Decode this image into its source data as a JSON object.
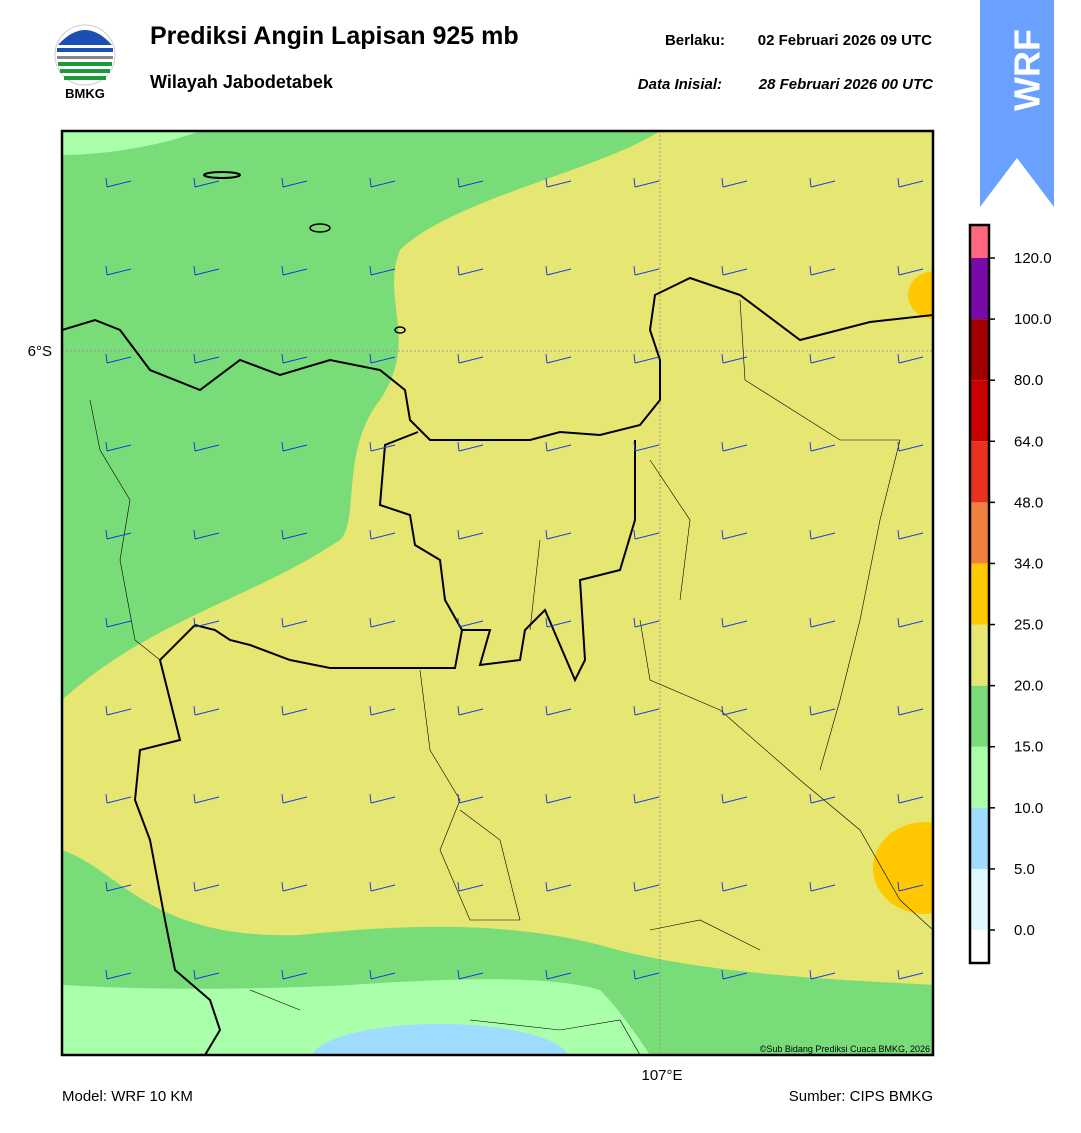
{
  "header": {
    "title": "Prediksi Angin Lapisan 925 mb",
    "subtitle": "Wilayah Jabodetabek",
    "valid_label": "Berlaku:",
    "valid": "02 Februari 2026 09 UTC",
    "init_label": "Data Inisial:",
    "init": "28 Februari 2026 00 UTC"
  },
  "logo": "BMKG",
  "badge": "WRF",
  "map": {
    "lat_label": "6°S",
    "lon_label": "107°E",
    "credit": "©Sub Bidang Prediksi Cuaca BMKG, 2026"
  },
  "colorbar": {
    "ticks": [
      {
        "value": 0,
        "label": "0.0"
      },
      {
        "value": 5,
        "label": "5.0"
      },
      {
        "value": 10,
        "label": "10.0"
      },
      {
        "value": 15,
        "label": "15.0"
      },
      {
        "value": 20,
        "label": "20.0"
      },
      {
        "value": 25,
        "label": "25.0"
      },
      {
        "value": 34,
        "label": "34.0"
      },
      {
        "value": 48,
        "label": "48.0"
      },
      {
        "value": 64,
        "label": "64.0"
      },
      {
        "value": 80,
        "label": "80.0"
      },
      {
        "value": 100,
        "label": "100.0"
      },
      {
        "value": 120,
        "label": "120.0"
      }
    ],
    "colors": [
      "#ffffff",
      "#e0f8ff",
      "#a0dcff",
      "#aaffaa",
      "#78dc78",
      "#e6e673",
      "#ffc800",
      "#f08040",
      "#e8321e",
      "#c80000",
      "#a00000",
      "#7a0aa8",
      "#ff6680"
    ]
  },
  "footer": {
    "model": "Model: WRF 10 KM",
    "source": "Sumber: CIPS BMKG"
  }
}
